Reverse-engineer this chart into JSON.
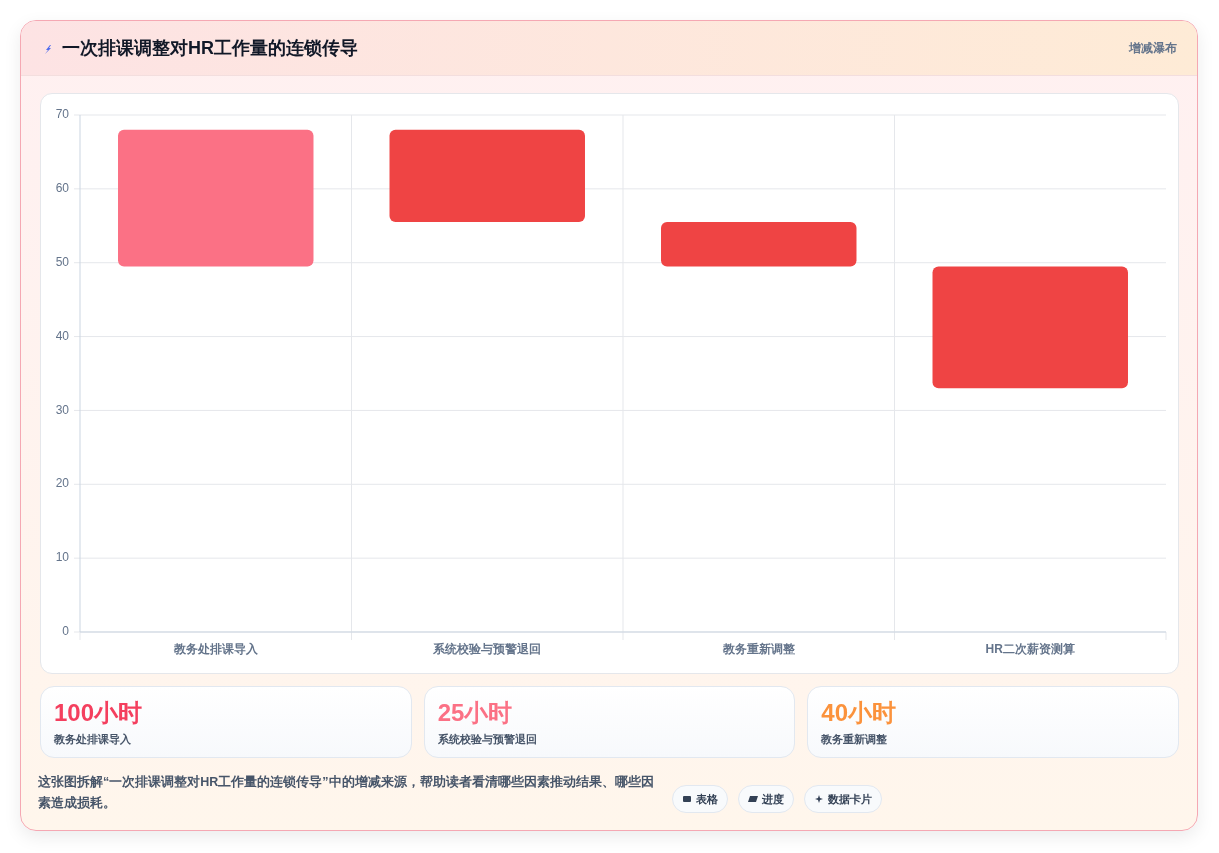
{
  "chart_data": [
    {
      "type": "bar",
      "title": "一次排课调整对HR工作量的连锁传导",
      "subtitle": "增减瀑布",
      "categories": [
        "教务处排课导入",
        "系统校验与预警退回",
        "教务重新调整",
        "HR二次薪资测算"
      ],
      "values": [
        18.5,
        -12.5,
        -6,
        -16.5
      ],
      "base": [
        49.5,
        68,
        55.5,
        49.5
      ],
      "colors": [
        "#fb7185",
        "#ef4444",
        "#ef4444",
        "#ef4444"
      ],
      "ylim": [
        0,
        70
      ],
      "yticks": [
        0,
        10,
        20,
        30,
        40,
        50,
        60,
        70
      ],
      "grid": true,
      "annotations": [
        "这张图拆解“一次排课调整对HR工作量的连锁传导”中的增减来源，帮助读者看清哪些因素推动结果、哪些因素造成损耗。",
        "表格",
        "进度",
        "数据卡片"
      ]
    },
    {
      "type": "other",
      "annotations": [
        "100小时",
        "教务处排课导入",
        "25小时",
        "系统校验与预警退回",
        "40小时",
        "教务重新调整"
      ]
    }
  ]
}
